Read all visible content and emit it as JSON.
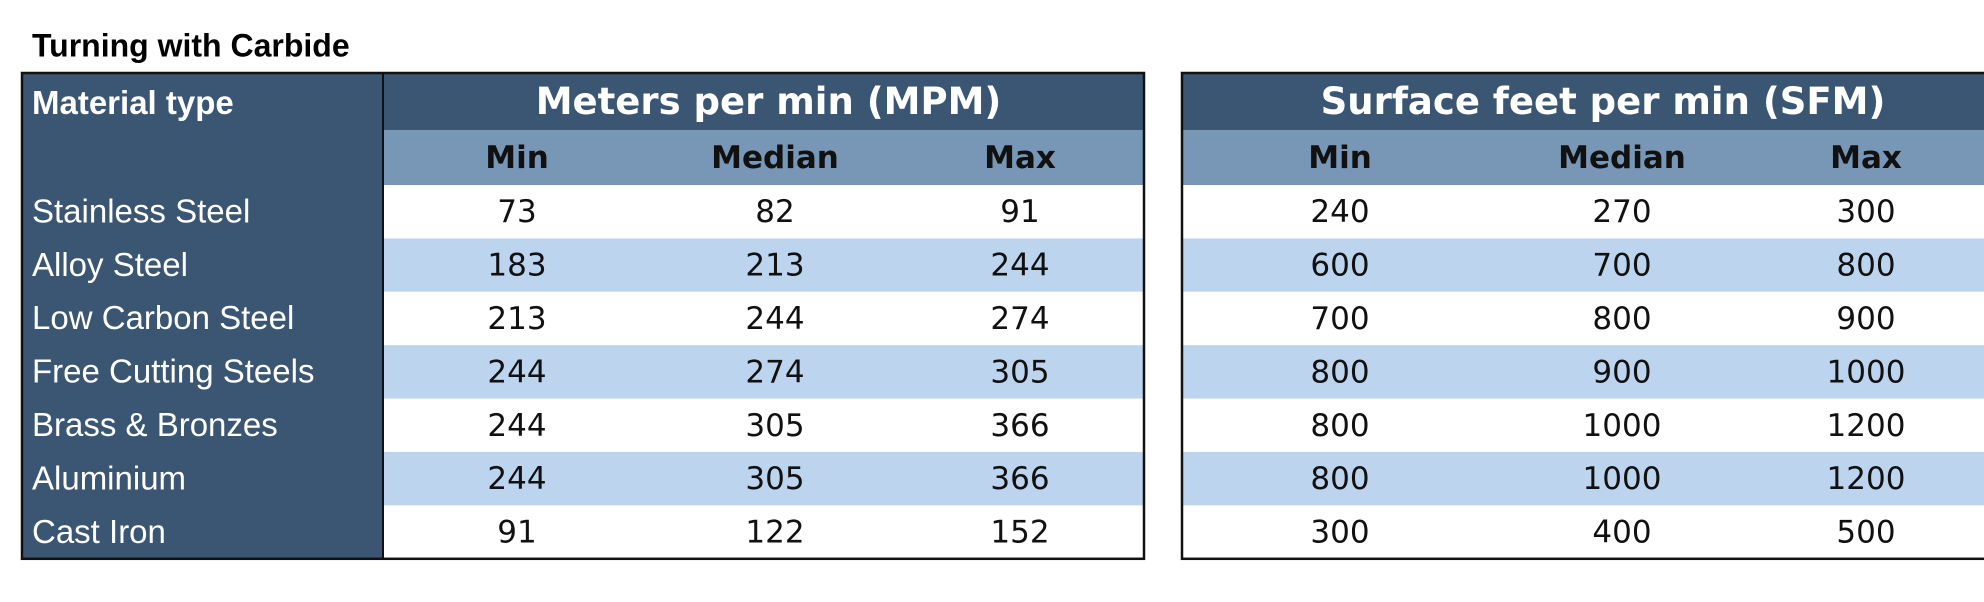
{
  "title": "Turning with Carbide",
  "header": {
    "material": "Material type",
    "groups": [
      {
        "label": "Meters per min (MPM)",
        "columns": [
          "Min",
          "Median",
          "Max"
        ]
      },
      {
        "label": "Surface feet per min (SFM)",
        "columns": [
          "Min",
          "Median",
          "Max"
        ]
      }
    ]
  },
  "rows": [
    {
      "material": "Stainless Steel",
      "values": [
        [
          73,
          82,
          91
        ],
        [
          240,
          270,
          300
        ]
      ]
    },
    {
      "material": "Alloy Steel",
      "values": [
        [
          183,
          213,
          244
        ],
        [
          600,
          700,
          800
        ]
      ]
    },
    {
      "material": "Low Carbon Steel",
      "values": [
        [
          213,
          244,
          274
        ],
        [
          700,
          800,
          900
        ]
      ]
    },
    {
      "material": "Free Cutting Steels",
      "values": [
        [
          244,
          274,
          305
        ],
        [
          800,
          900,
          1000
        ]
      ]
    },
    {
      "material": "Brass & Bronzes",
      "values": [
        [
          244,
          305,
          366
        ],
        [
          800,
          1000,
          1200
        ]
      ]
    },
    {
      "material": "Aluminium",
      "values": [
        [
          244,
          305,
          366
        ],
        [
          800,
          1000,
          1200
        ]
      ]
    },
    {
      "material": "Cast Iron",
      "values": [
        [
          91,
          122,
          152
        ],
        [
          300,
          400,
          500
        ]
      ]
    }
  ]
}
